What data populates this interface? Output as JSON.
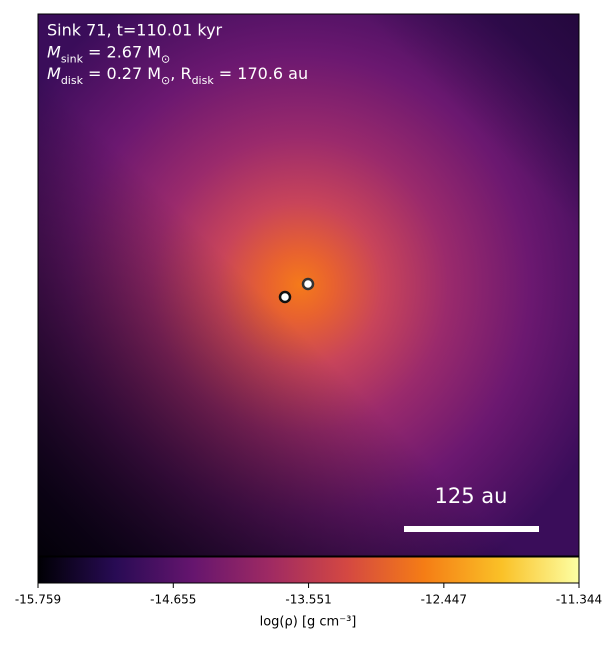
{
  "chart_data": {
    "type": "density-map",
    "annotations": [
      {
        "text": "Sink 71, t=110.01 kyr"
      },
      {
        "parts": [
          "M",
          "sink",
          " = 2.67 M",
          "⊙"
        ]
      },
      {
        "parts": [
          "M",
          "disk",
          " = 0.27 M",
          "⊙",
          ", R",
          "disk",
          " = 170.6 au"
        ]
      }
    ],
    "scale_bar": "125 au",
    "colorbar_label": "log(ρ) [g cm⁻³]",
    "clim": [
      -15.759,
      -11.344
    ],
    "cticks": [
      -15.759,
      -14.655,
      -13.551,
      -12.447,
      -11.344
    ],
    "colormap": [
      "#000004",
      "#280b54",
      "#65156e",
      "#9f2a63",
      "#d44842",
      "#f57d15",
      "#fac127",
      "#fcffa4"
    ]
  }
}
